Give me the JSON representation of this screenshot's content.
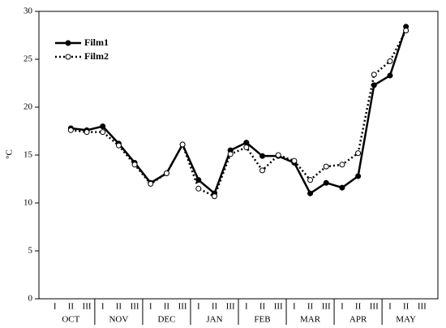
{
  "chart_data": {
    "type": "line",
    "y_label": "°C",
    "categories": [
      "I",
      "II",
      "III",
      "I",
      "II",
      "III",
      "I",
      "II",
      "III",
      "I",
      "II",
      "III",
      "I",
      "II",
      "III",
      "I",
      "II",
      "III",
      "I",
      "II",
      "III",
      "I",
      "II",
      "III"
    ],
    "months": [
      "OCT",
      "NOV",
      "DEC",
      "JAN",
      "FEB",
      "MAR",
      "APR",
      "MAY"
    ],
    "series": [
      {
        "name": "Film1",
        "color": "#000000",
        "dash": "solid",
        "marker": "filled",
        "values": [
          null,
          17.8,
          17.6,
          18.0,
          16.2,
          14.2,
          12.1,
          13.1,
          16.1,
          12.4,
          11.0,
          15.5,
          16.3,
          14.9,
          14.9,
          14.2,
          11.0,
          12.1,
          11.6,
          12.8,
          22.3,
          23.3,
          28.4,
          null
        ]
      },
      {
        "name": "Film2",
        "color": "#000000",
        "dash": "dotted",
        "marker": "open",
        "values": [
          null,
          17.6,
          17.4,
          17.4,
          16.0,
          14.0,
          12.0,
          13.1,
          16.1,
          11.5,
          10.7,
          15.1,
          15.8,
          13.4,
          15.0,
          14.4,
          12.4,
          13.8,
          14.0,
          15.2,
          23.4,
          24.8,
          28.0,
          null
        ]
      }
    ],
    "ylim": [
      0,
      30
    ],
    "yticks": [
      0,
      5,
      10,
      15,
      20,
      25,
      30
    ],
    "grid": false,
    "legend": "upper left"
  }
}
